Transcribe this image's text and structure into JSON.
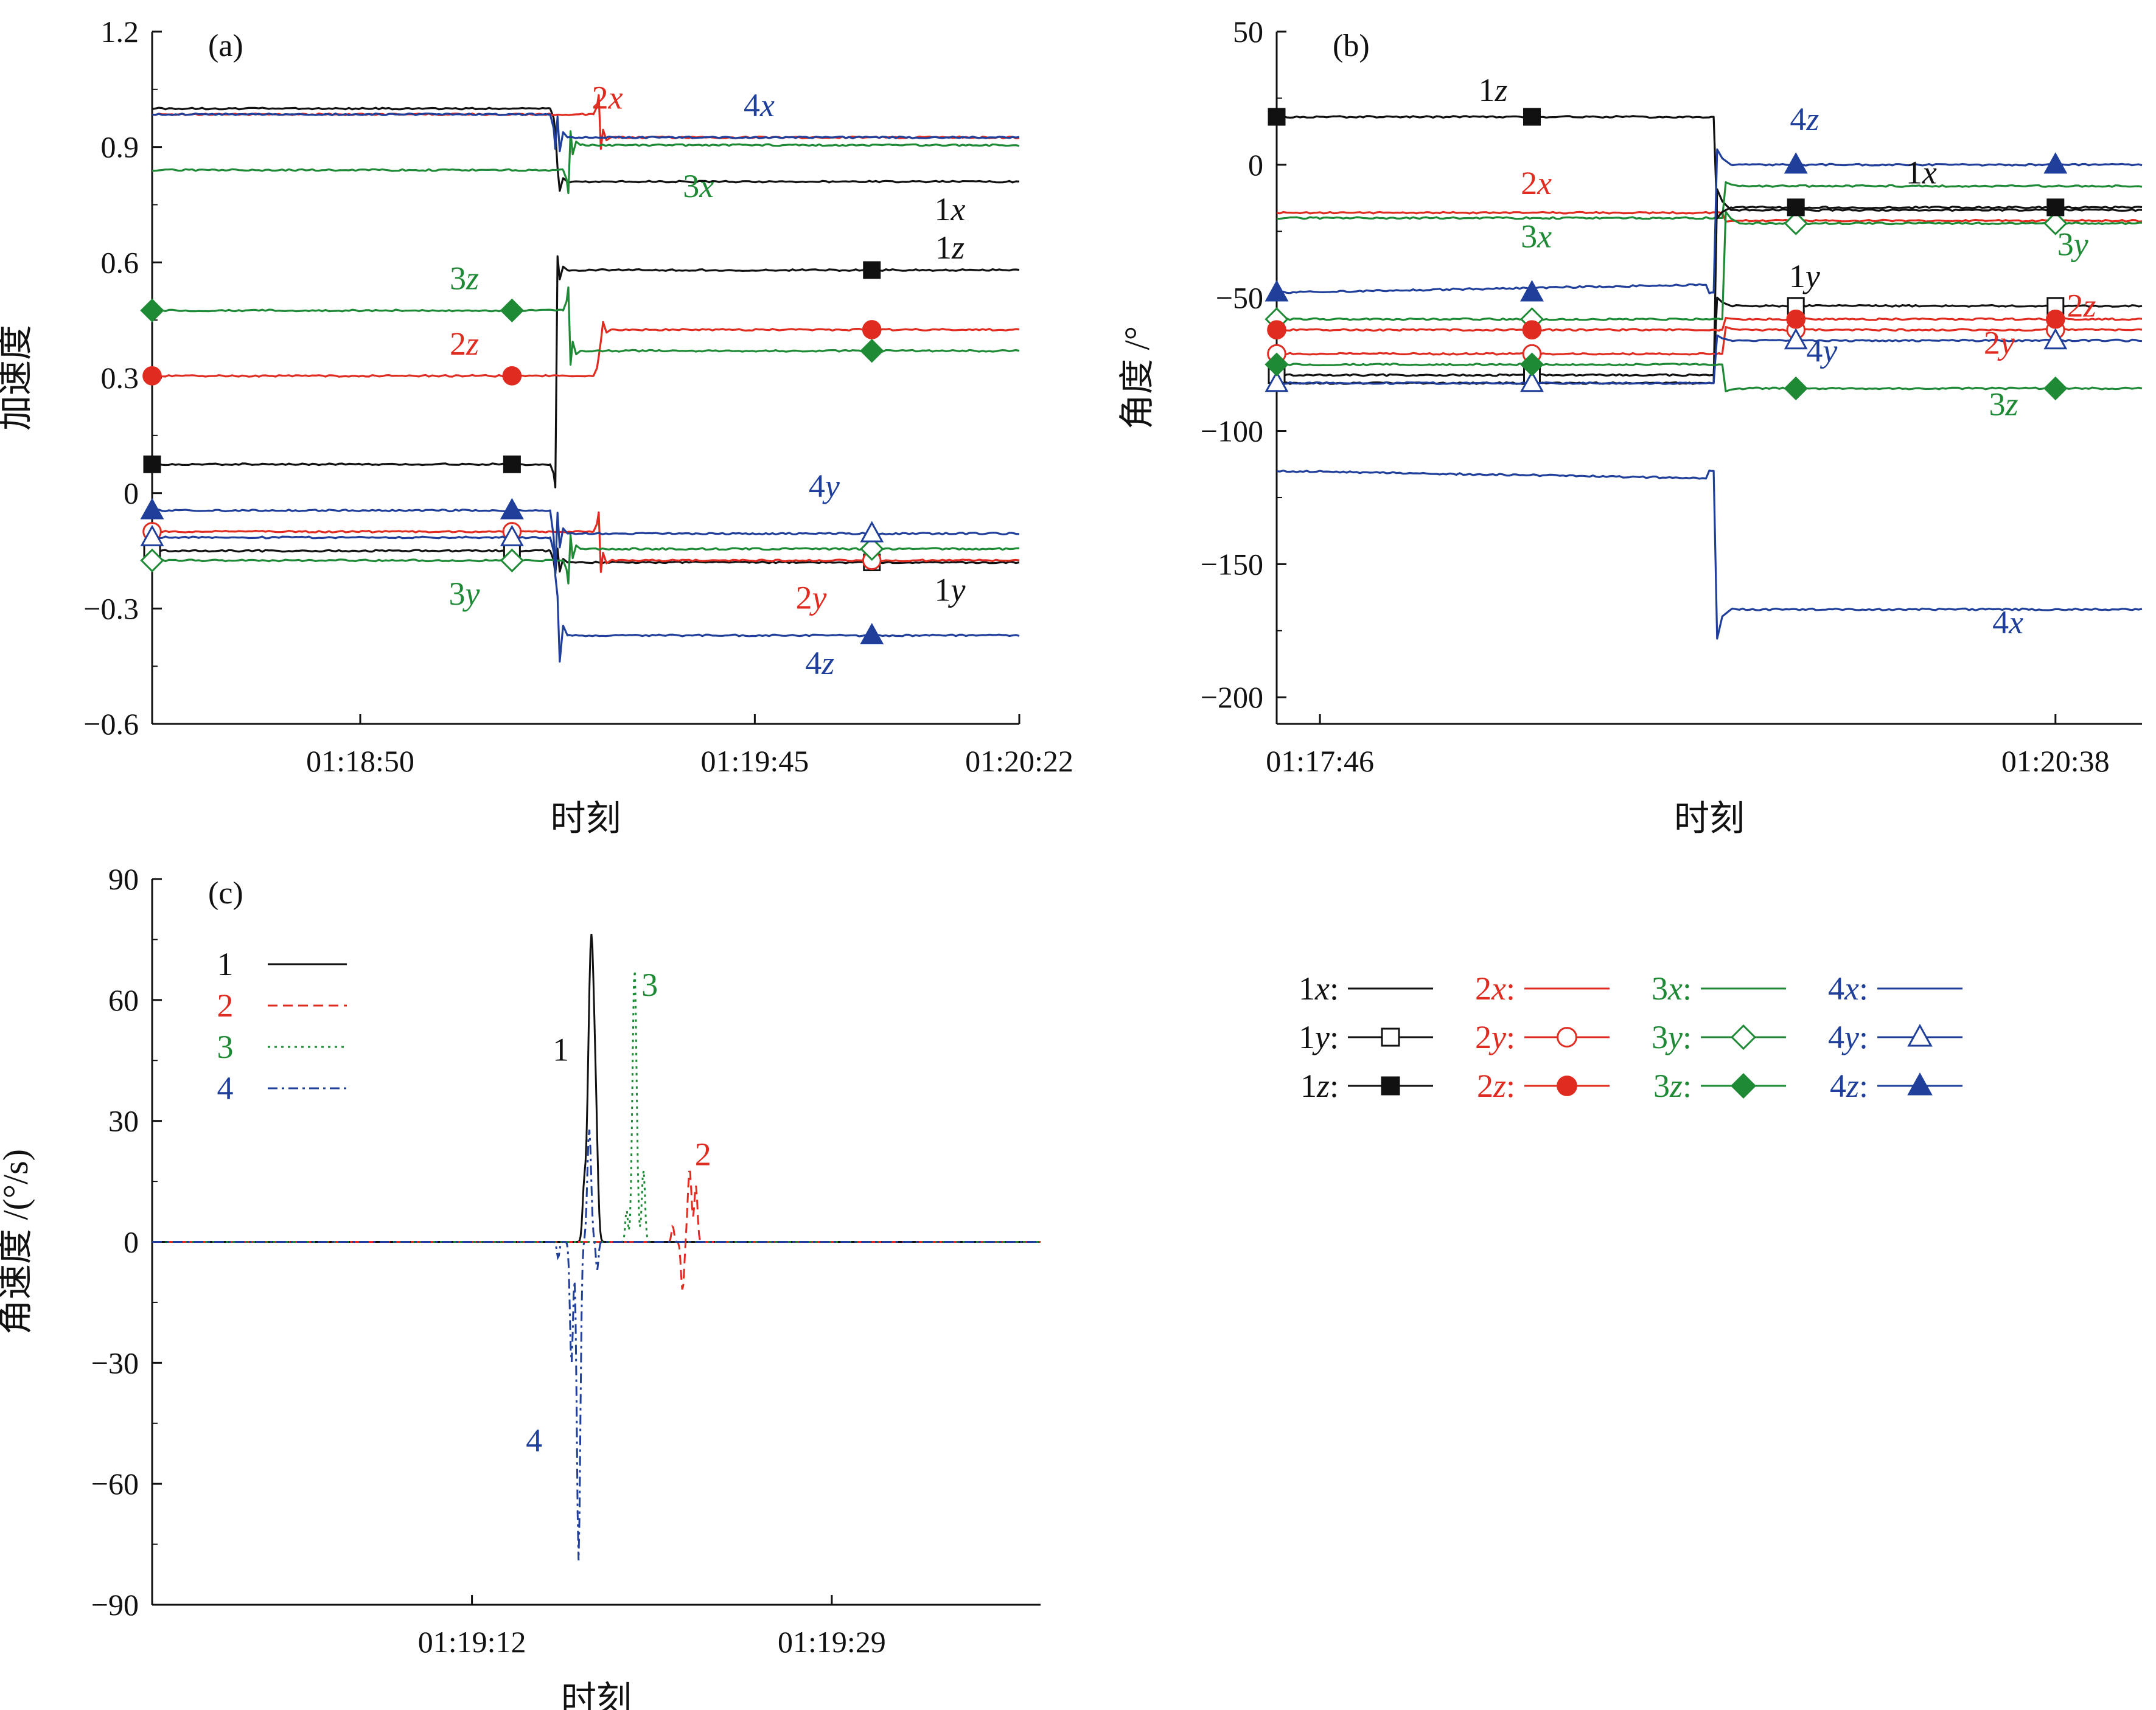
{
  "colors": {
    "1": "#111111",
    "2": "#e02b20",
    "3": "#1e8a35",
    "4": "#1f3f9a"
  },
  "legend": {
    "entries": [
      {
        "label": "1x:",
        "series": "1",
        "marker": "none"
      },
      {
        "label": "2x:",
        "series": "2",
        "marker": "none"
      },
      {
        "label": "3x:",
        "series": "3",
        "marker": "none"
      },
      {
        "label": "4x:",
        "series": "4",
        "marker": "none"
      },
      {
        "label": "1y:",
        "series": "1",
        "marker": "square-open"
      },
      {
        "label": "2y:",
        "series": "2",
        "marker": "circle-open"
      },
      {
        "label": "3y:",
        "series": "3",
        "marker": "diamond-open"
      },
      {
        "label": "4y:",
        "series": "4",
        "marker": "triangle-open"
      },
      {
        "label": "1z:",
        "series": "1",
        "marker": "square-filled"
      },
      {
        "label": "2z:",
        "series": "2",
        "marker": "circle-filled"
      },
      {
        "label": "3z:",
        "series": "3",
        "marker": "diamond-filled"
      },
      {
        "label": "4z:",
        "series": "4",
        "marker": "triangle-filled"
      }
    ]
  },
  "chart_data": [
    {
      "id": "a",
      "panel_label": "(a)",
      "type": "line",
      "ylabel": "加速度",
      "xlabel": "时刻",
      "ylim": [
        -0.6,
        1.2
      ],
      "yticks": [
        1.2,
        0.9,
        0.6,
        0.3,
        0,
        -0.3,
        -0.6
      ],
      "ytick_labels": [
        "1.2",
        "0.9",
        "0.6",
        "0.3",
        "0",
        "−0.3",
        "−0.6"
      ],
      "xlim": [
        0,
        100
      ],
      "xticks": [
        24,
        69.5,
        100
      ],
      "xtick_labels": [
        "01:18:50",
        "01:19:45",
        "01:20:22"
      ],
      "series": [
        {
          "name": "1x",
          "group": "1",
          "before": 1.0,
          "after": 0.81,
          "switch": 46.5,
          "dip": -0.06,
          "marker": "none"
        },
        {
          "name": "2x",
          "group": "2",
          "before": 0.985,
          "after": 0.925,
          "switch": 51.5,
          "dip": 0.05,
          "marker": "none"
        },
        {
          "name": "3x",
          "group": "3",
          "before": 0.84,
          "after": 0.905,
          "switch": 48.0,
          "dip": -0.06,
          "marker": "none"
        },
        {
          "name": "4x",
          "group": "4",
          "before": 0.985,
          "after": 0.925,
          "switch": 46.5,
          "dip": -0.09,
          "marker": "none"
        },
        {
          "name": "1y",
          "group": "1",
          "before": -0.15,
          "after": -0.18,
          "switch": 46.5,
          "dip": -0.06,
          "marker": "square-open"
        },
        {
          "name": "2y",
          "group": "2",
          "before": -0.1,
          "after": -0.175,
          "switch": 51.5,
          "dip": 0.05,
          "marker": "circle-open"
        },
        {
          "name": "3y",
          "group": "3",
          "before": -0.175,
          "after": -0.145,
          "switch": 48.0,
          "dip": -0.06,
          "marker": "diamond-open"
        },
        {
          "name": "4y",
          "group": "4",
          "before": -0.115,
          "after": -0.105,
          "switch": 46.5,
          "dip": -0.09,
          "marker": "triangle-open"
        },
        {
          "name": "1z",
          "group": "1",
          "before": 0.075,
          "after": 0.58,
          "switch": 46.5,
          "dip": -0.06,
          "marker": "square-filled"
        },
        {
          "name": "2z",
          "group": "2",
          "before": 0.305,
          "after": 0.425,
          "switch": 51.5,
          "dip": 0.05,
          "marker": "circle-filled"
        },
        {
          "name": "3z",
          "group": "3",
          "before": 0.475,
          "after": 0.37,
          "switch": 48.0,
          "dip": 0.06,
          "marker": "diamond-filled"
        },
        {
          "name": "4z",
          "group": "4",
          "before": -0.045,
          "after": -0.37,
          "switch": 46.5,
          "dip": -0.17,
          "marker": "triangle-filled"
        }
      ],
      "marker_x": [
        0,
        41.5,
        83
      ],
      "annotations": [
        {
          "text": "2x",
          "group": "2",
          "x": 52.5,
          "y": 1.0
        },
        {
          "text": "4x",
          "group": "4",
          "x": 70,
          "y": 0.98
        },
        {
          "text": "3x",
          "group": "3",
          "x": 63,
          "y": 0.77
        },
        {
          "text": "1x",
          "group": "1",
          "x": 92,
          "y": 0.71
        },
        {
          "text": "1z",
          "group": "1",
          "x": 92,
          "y": 0.61
        },
        {
          "text": "3z",
          "group": "3",
          "x": 36,
          "y": 0.53
        },
        {
          "text": "2z",
          "group": "2",
          "x": 36,
          "y": 0.36
        },
        {
          "text": "4y",
          "group": "4",
          "x": 77.5,
          "y": -0.01
        },
        {
          "text": "3y",
          "group": "3",
          "x": 36,
          "y": -0.29
        },
        {
          "text": "2y",
          "group": "2",
          "x": 76,
          "y": -0.3
        },
        {
          "text": "1y",
          "group": "1",
          "x": 92,
          "y": -0.28
        },
        {
          "text": "4z",
          "group": "4",
          "x": 77,
          "y": -0.47
        }
      ]
    },
    {
      "id": "b",
      "panel_label": "(b)",
      "type": "line",
      "ylabel": "角度 /°",
      "xlabel": "时刻",
      "ylim": [
        -210,
        50
      ],
      "yticks": [
        50,
        0,
        -50,
        -100,
        -150,
        -200
      ],
      "ytick_labels": [
        "50",
        "0",
        "−50",
        "−100",
        "−150",
        "−200"
      ],
      "xlim": [
        0,
        100
      ],
      "xticks": [
        5,
        90
      ],
      "xtick_labels": [
        "01:17:46",
        "01:20:38"
      ],
      "series": [
        {
          "name": "1x",
          "group": "1",
          "before": -82,
          "after": -17,
          "switch": 50.5,
          "marker": "none"
        },
        {
          "name": "2x",
          "group": "2",
          "before": -18,
          "after": -21,
          "switch": 51.5,
          "marker": "none"
        },
        {
          "name": "3x",
          "group": "3",
          "before": -20,
          "after": -8,
          "switch": 51.5,
          "marker": "none"
        },
        {
          "name": "4x",
          "group": "4",
          "before": -115,
          "after": -167,
          "switch": 50.5,
          "dip": -178,
          "marker": "none"
        },
        {
          "name": "1y",
          "group": "1",
          "before": -79,
          "after": -53,
          "switch": 50.5,
          "marker": "square-open"
        },
        {
          "name": "2y",
          "group": "2",
          "before": -71,
          "after": -62,
          "switch": 51.5,
          "marker": "circle-open"
        },
        {
          "name": "3y",
          "group": "3",
          "before": -58,
          "after": -22,
          "switch": 51.5,
          "marker": "diamond-open"
        },
        {
          "name": "4y",
          "group": "4",
          "before": -82,
          "after": -66,
          "switch": 50.5,
          "marker": "triangle-open"
        },
        {
          "name": "1z",
          "group": "1",
          "before": 18,
          "after": -16,
          "switch": 50.5,
          "marker": "square-filled"
        },
        {
          "name": "2z",
          "group": "2",
          "before": -62,
          "after": -58,
          "switch": 51.5,
          "marker": "circle-filled"
        },
        {
          "name": "3z",
          "group": "3",
          "before": -75,
          "after": -84,
          "switch": 51.5,
          "marker": "diamond-filled"
        },
        {
          "name": "4z",
          "group": "4",
          "before": -48,
          "after": 0,
          "switch": 50.5,
          "marker": "triangle-filled"
        }
      ],
      "marker_x": [
        0,
        29.5,
        60,
        90
      ],
      "annotations": [
        {
          "text": "1z",
          "group": "1",
          "x": 25,
          "y": 24
        },
        {
          "text": "4z",
          "group": "4",
          "x": 61,
          "y": 13
        },
        {
          "text": "2x",
          "group": "2",
          "x": 30,
          "y": -11
        },
        {
          "text": "1x",
          "group": "1",
          "x": 74.5,
          "y": -7
        },
        {
          "text": "3x",
          "group": "3",
          "x": 30,
          "y": -31
        },
        {
          "text": "3y",
          "group": "3",
          "x": 92,
          "y": -34
        },
        {
          "text": "1y",
          "group": "1",
          "x": 61,
          "y": -46
        },
        {
          "text": "2z",
          "group": "2",
          "x": 93,
          "y": -57
        },
        {
          "text": "2y",
          "group": "2",
          "x": 83.5,
          "y": -71
        },
        {
          "text": "4y",
          "group": "4",
          "x": 63,
          "y": -74
        },
        {
          "text": "3z",
          "group": "3",
          "x": 84,
          "y": -94
        },
        {
          "text": "4x",
          "group": "4",
          "x": 84.5,
          "y": -176
        }
      ]
    },
    {
      "id": "c",
      "panel_label": "(c)",
      "type": "line",
      "ylabel": "角速度 /(°/s)",
      "xlabel": "时刻",
      "ylim": [
        -90,
        90
      ],
      "yticks": [
        90,
        60,
        30,
        0,
        -30,
        -60,
        -90
      ],
      "ytick_labels": [
        "90",
        "60",
        "30",
        "0",
        "−30",
        "−60",
        "−90"
      ],
      "xlim": [
        0,
        100
      ],
      "xticks": [
        36,
        76.5
      ],
      "xtick_labels": [
        "01:19:12",
        "01:19:29"
      ],
      "series": [
        {
          "name": "1",
          "dash": "solid",
          "pulses": [
            {
              "x": 49.5,
              "peak": 49,
              "w": 0.9
            },
            {
              "x": 49.3,
              "peak": 30,
              "w": 1.0
            },
            {
              "x": 50.0,
              "peak": 17,
              "w": 0.6
            },
            {
              "x": 48.6,
              "peak": 10,
              "w": 0.5
            }
          ]
        },
        {
          "name": "2",
          "dash": "dashed",
          "pulses": [
            {
              "x": 60.5,
              "peak": 18,
              "w": 0.6
            },
            {
              "x": 61.2,
              "peak": 14,
              "w": 0.5
            },
            {
              "x": 59.7,
              "peak": -12,
              "w": 0.5
            },
            {
              "x": 58.6,
              "peak": 4,
              "w": 0.4
            }
          ]
        },
        {
          "name": "3",
          "dash": "dotted",
          "pulses": [
            {
              "x": 54.3,
              "peak": 68,
              "w": 0.65
            },
            {
              "x": 55.3,
              "peak": 18,
              "w": 0.5
            },
            {
              "x": 53.4,
              "peak": 8,
              "w": 0.4
            }
          ]
        },
        {
          "name": "4",
          "dash": "dashdot",
          "pulses": [
            {
              "x": 48.0,
              "peak": -79,
              "w": 0.55
            },
            {
              "x": 49.2,
              "peak": 28,
              "w": 0.6
            },
            {
              "x": 47.2,
              "peak": -30,
              "w": 0.5
            },
            {
              "x": 50.1,
              "peak": -7,
              "w": 0.4
            },
            {
              "x": 45.7,
              "peak": -4,
              "w": 0.4
            }
          ]
        }
      ],
      "legend": [
        {
          "label": "1",
          "series": "1"
        },
        {
          "label": "2",
          "series": "2"
        },
        {
          "label": "3",
          "series": "3"
        },
        {
          "label": "4",
          "series": "4"
        }
      ],
      "annotations": [
        {
          "text": "1",
          "group": "1",
          "x": 46,
          "y": 45
        },
        {
          "text": "3",
          "group": "3",
          "x": 56,
          "y": 61
        },
        {
          "text": "2",
          "group": "2",
          "x": 62,
          "y": 19
        },
        {
          "text": "4",
          "group": "4",
          "x": 43,
          "y": -52
        }
      ]
    }
  ]
}
